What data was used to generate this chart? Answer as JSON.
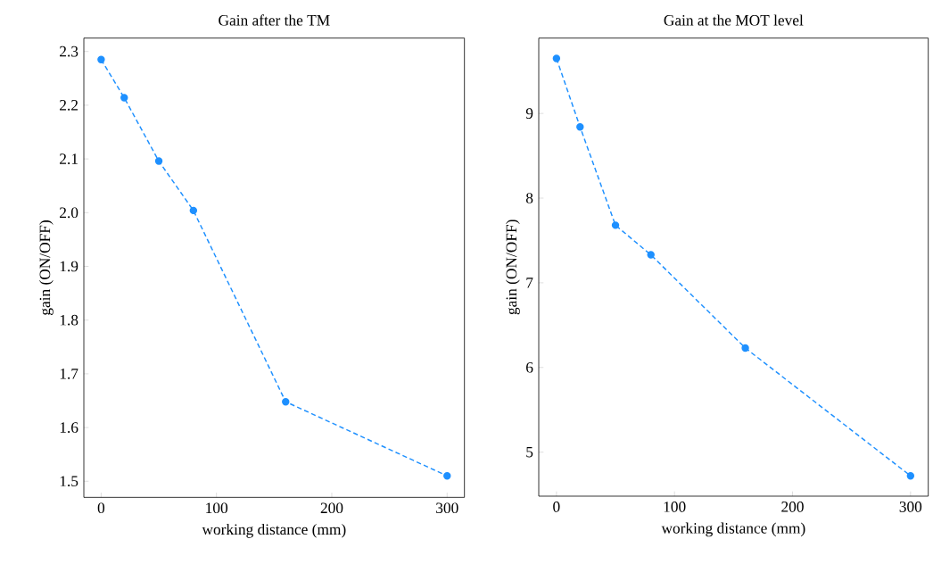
{
  "chart_data": [
    {
      "type": "line",
      "title": "Gain after the TM",
      "xlabel": "working distance (mm)",
      "ylabel": "gain (ON/OFF)",
      "x": [
        0,
        20,
        50,
        80,
        160,
        300
      ],
      "series": [
        {
          "color": "#1e90ff",
          "values": [
            2.285,
            2.214,
            2.096,
            2.004,
            1.648,
            1.51
          ]
        }
      ],
      "xlim": [
        -15,
        315
      ],
      "ylim": [
        1.47,
        2.325
      ],
      "xticks": [
        0,
        100,
        200,
        300
      ],
      "yticks": [
        1.5,
        1.6,
        1.7,
        1.8,
        1.9,
        {
          "value": 2.0,
          "label": "2.0"
        },
        2.1,
        2.2,
        2.3
      ],
      "marker": "circle",
      "line_style": "dashed"
    },
    {
      "type": "line",
      "title": "Gain at the MOT level",
      "xlabel": "working distance (mm)",
      "ylabel": "gain (ON/OFF)",
      "x": [
        0,
        20,
        50,
        80,
        160,
        300
      ],
      "series": [
        {
          "color": "#1e90ff",
          "values": [
            9.65,
            8.84,
            7.68,
            7.33,
            6.23,
            4.72
          ]
        }
      ],
      "xlim": [
        -15,
        315
      ],
      "ylim": [
        4.48,
        9.89
      ],
      "xticks": [
        0,
        100,
        200,
        300
      ],
      "yticks": [
        5,
        6,
        7,
        8,
        9
      ],
      "marker": "circle",
      "line_style": "dashed"
    }
  ]
}
